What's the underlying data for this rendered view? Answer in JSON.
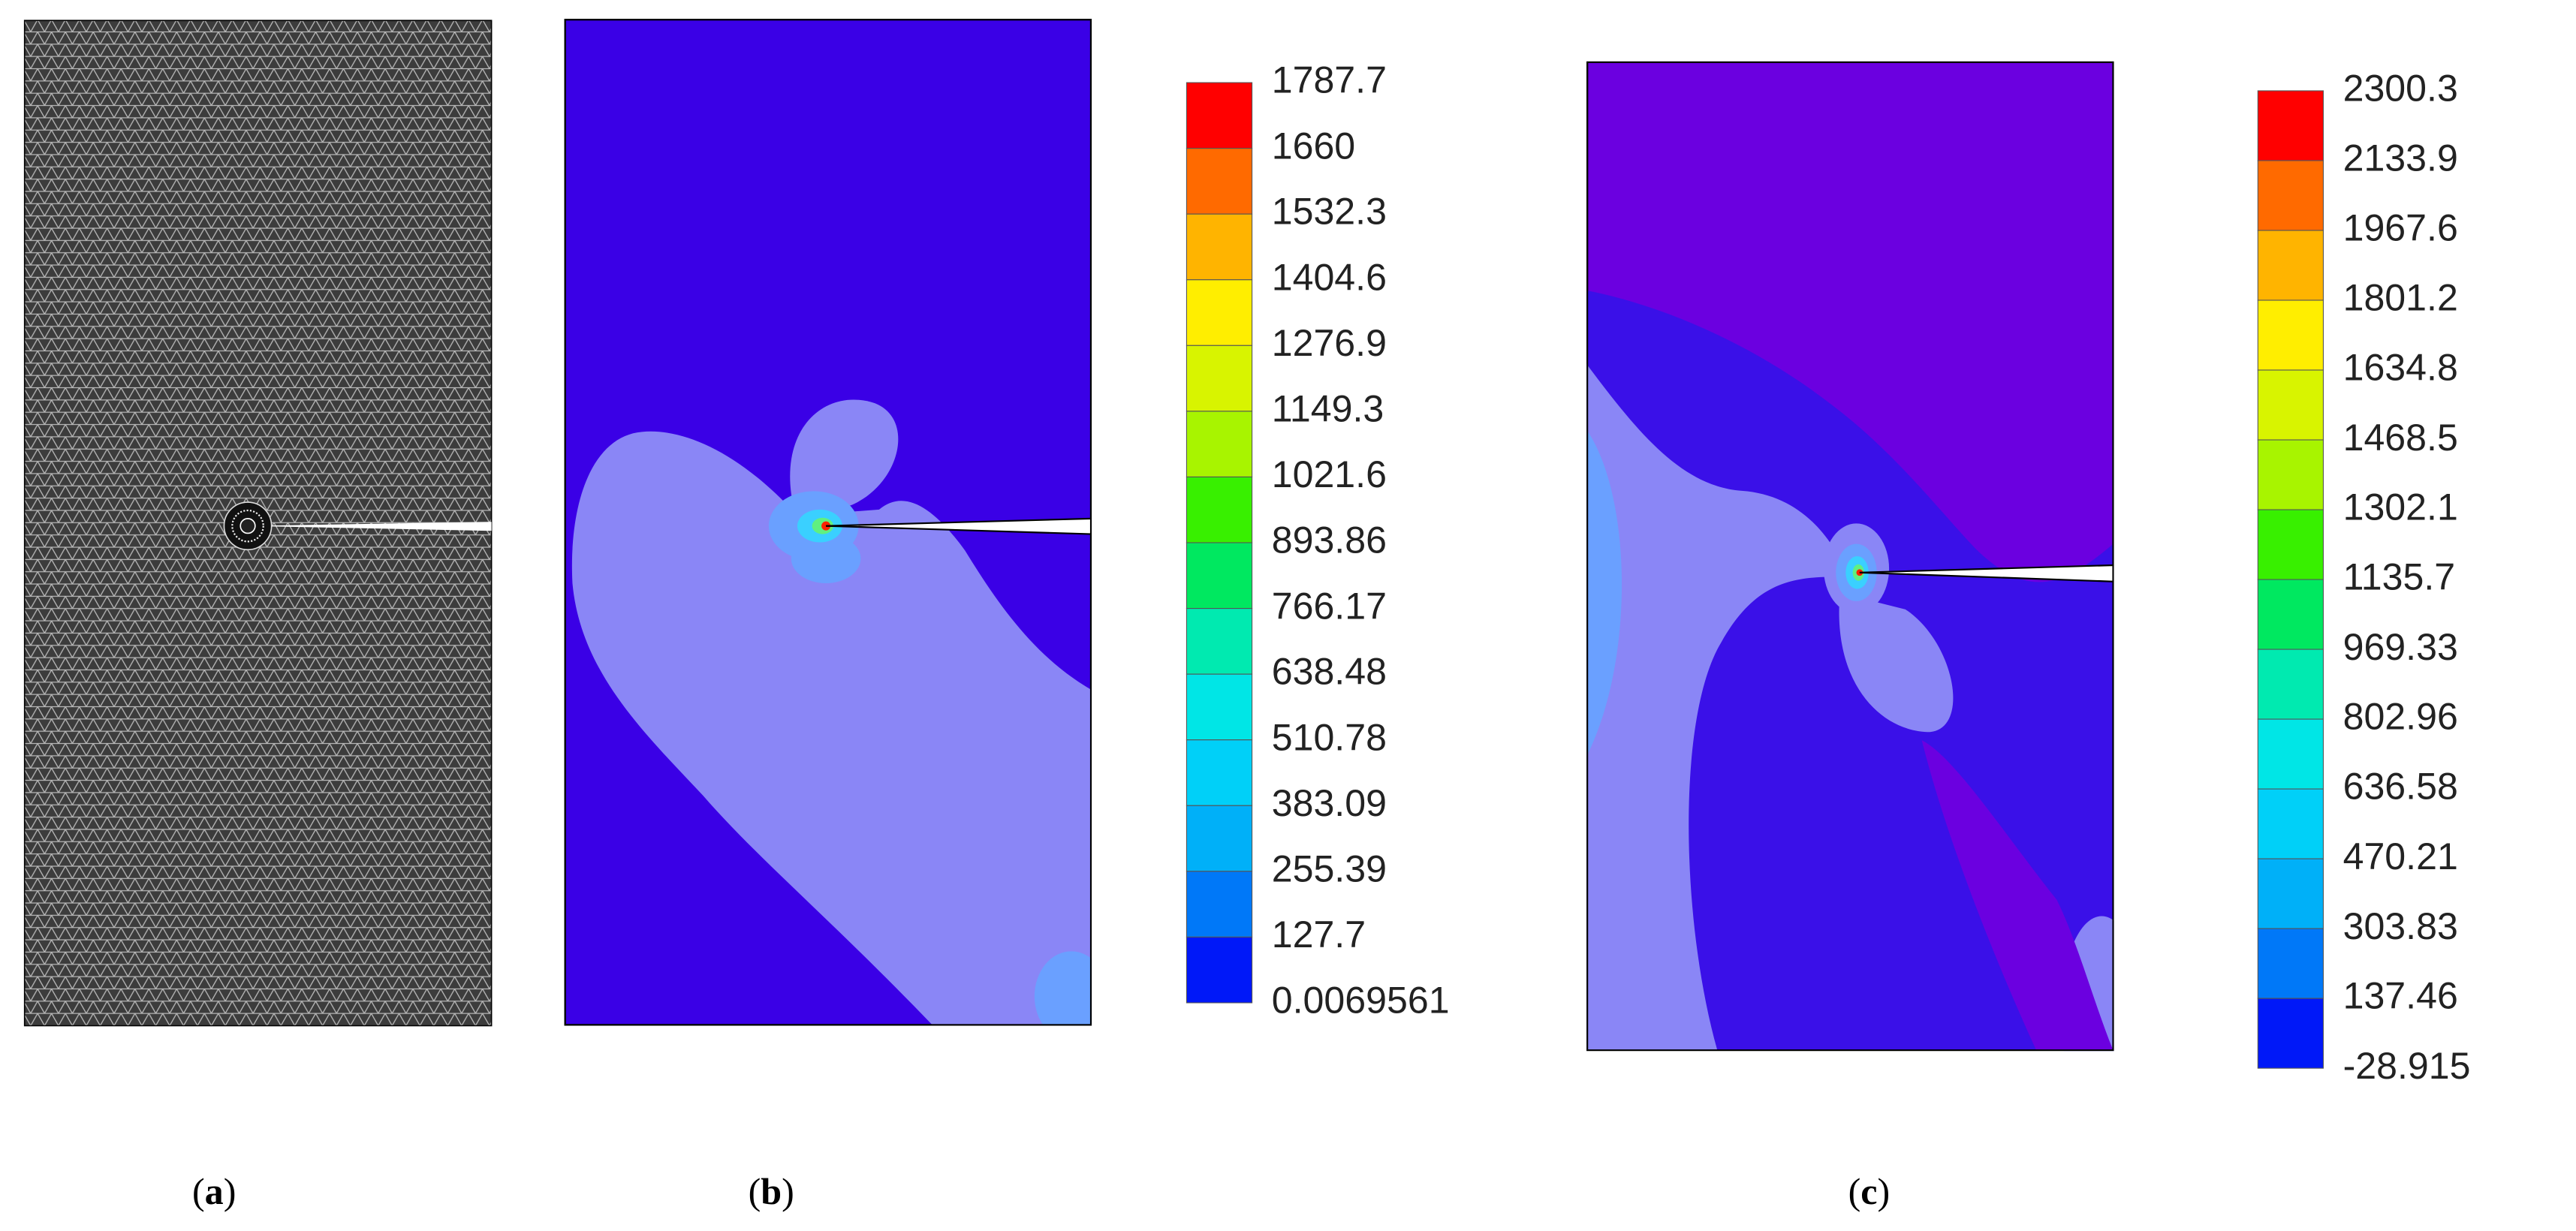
{
  "captions": [
    {
      "id": "a",
      "text": "a"
    },
    {
      "id": "b",
      "text": "b"
    },
    {
      "id": "c",
      "text": "c"
    }
  ],
  "colorbars": [
    {
      "id": "b",
      "labels": [
        "1787.7",
        "1660",
        "1532.3",
        "1404.6",
        "1276.9",
        "1149.3",
        "1021.6",
        "893.86",
        "766.17",
        "638.48",
        "510.78",
        "383.09",
        "255.39",
        "127.7",
        "0.0069561"
      ],
      "colors": [
        "#ff0000",
        "#ff6a00",
        "#ffb400",
        "#ffee00",
        "#d8f400",
        "#a8f400",
        "#38f000",
        "#00e860",
        "#00eab0",
        "#00e6e6",
        "#00d0f8",
        "#00b0f8",
        "#0078f8",
        "#0018f8"
      ]
    },
    {
      "id": "c",
      "labels": [
        "2300.3",
        "2133.9",
        "1967.6",
        "1801.2",
        "1634.8",
        "1468.5",
        "1302.1",
        "1135.7",
        "969.33",
        "802.96",
        "636.58",
        "470.21",
        "303.83",
        "137.46",
        "-28.915"
      ],
      "colors": [
        "#ff0000",
        "#ff6a00",
        "#ffb400",
        "#ffee00",
        "#d8f400",
        "#a8f400",
        "#38f000",
        "#00e860",
        "#00eab0",
        "#00e6e6",
        "#00d0f8",
        "#00b0f8",
        "#0078f8",
        "#0018f8"
      ]
    }
  ],
  "colors": {
    "mesh_bg": "#3c3c3c",
    "mesh_line": "#bcbcbc",
    "field_b": "#3a00e6",
    "field_c": "#6b00e0",
    "contour_light": "#8a86f6",
    "contour_mid": "#5aa0ff",
    "contour_dark_c": "#3a10e8"
  }
}
